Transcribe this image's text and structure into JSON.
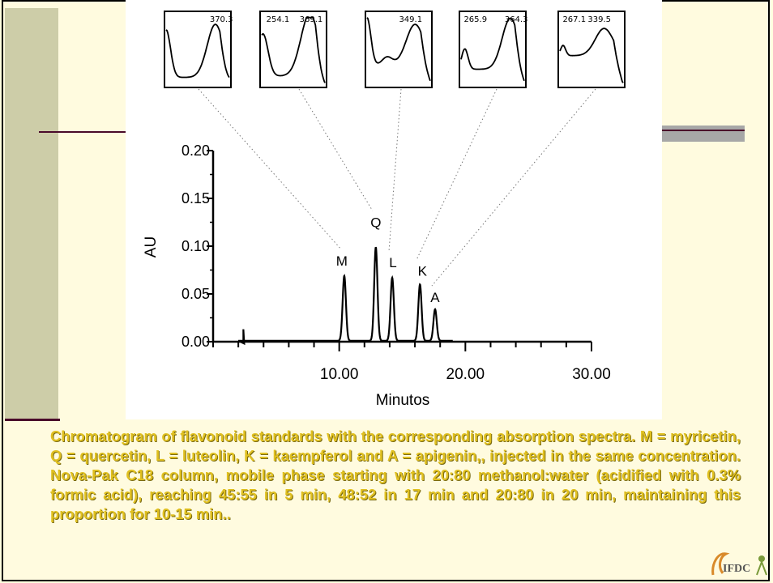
{
  "chart_data": {
    "type": "line",
    "xlabel": "Minutos",
    "ylabel": "AU",
    "xlim": [
      0,
      30
    ],
    "ylim": [
      0,
      0.2
    ],
    "x_ticks": [
      "10.00",
      "20.00",
      "30.00"
    ],
    "y_ticks": [
      "0.20",
      "0.15",
      "0.10",
      "0.05",
      "0.00"
    ],
    "peaks": [
      {
        "label": "M",
        "x": 10.4,
        "y": 0.068
      },
      {
        "label": "Q",
        "x": 12.9,
        "y": 0.098
      },
      {
        "label": "L",
        "x": 14.2,
        "y": 0.066
      },
      {
        "label": "K",
        "x": 16.4,
        "y": 0.059
      },
      {
        "label": "A",
        "x": 17.6,
        "y": 0.033
      }
    ],
    "spectra": [
      {
        "labels": [
          "370.3"
        ]
      },
      {
        "labels": [
          "254.1",
          "369.1"
        ]
      },
      {
        "labels": [
          "349.1"
        ]
      },
      {
        "labels": [
          "265.9",
          "364.3"
        ]
      },
      {
        "labels": [
          "267.1",
          "339.5"
        ]
      }
    ]
  },
  "caption": "Chromatogram of flavonoid standards with the corresponding absorption spectra. M = myricetin, Q = quercetin, L = luteolin, K = kaempferol and A = apigenin,, injected in the same concentration. Nova-Pak C18 column, mobile phase starting with 20:80 methanol:water (acidified with 0.3% formic acid), reaching 45:55 in 5 min, 48:52 in 17 min and 20:80 in 20 min, maintaining this proportion for 10-15 min..",
  "logo_text": "IFDC"
}
